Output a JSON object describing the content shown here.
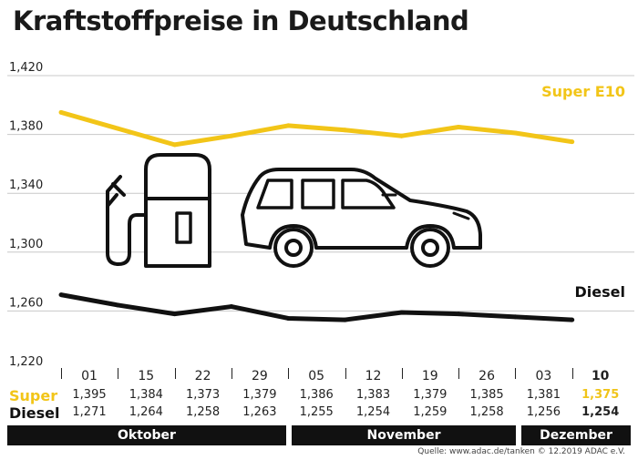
{
  "title": "Kraftstoffpreise in Deutschland",
  "source": "Quelle: www.adac.de/tanken   © 12.2019  ADAC e.V.",
  "colors": {
    "super": "#f2c518",
    "diesel": "#111111",
    "grid": "#c8c8c8"
  },
  "icons": [
    "fuel-pump-icon",
    "car-icon"
  ],
  "table": {
    "super_label": "Super",
    "diesel_label": "Diesel",
    "months": [
      "Oktober",
      "November",
      "Dezember"
    ]
  },
  "chart_data": {
    "type": "line",
    "title": "Kraftstoffpreise in Deutschland",
    "categories": [
      "01",
      "15",
      "22",
      "29",
      "05",
      "12",
      "19",
      "26",
      "03",
      "10"
    ],
    "ylim": [
      1.22,
      1.42
    ],
    "yticks": [
      "1,420",
      "1,380",
      "1,340",
      "1,300",
      "1,260",
      "1,220"
    ],
    "grid": true,
    "series": [
      {
        "name": "Super E10",
        "row_label": "Super",
        "color": "#f2c518",
        "values": [
          1.395,
          1.384,
          1.373,
          1.379,
          1.386,
          1.383,
          1.379,
          1.385,
          1.381,
          1.375
        ],
        "labels": [
          "1,395",
          "1,384",
          "1,373",
          "1,379",
          "1,386",
          "1,383",
          "1,379",
          "1,385",
          "1,381",
          "1,375"
        ]
      },
      {
        "name": "Diesel",
        "row_label": "Diesel",
        "color": "#111111",
        "values": [
          1.271,
          1.264,
          1.258,
          1.263,
          1.255,
          1.254,
          1.259,
          1.258,
          1.256,
          1.254
        ],
        "labels": [
          "1,271",
          "1,264",
          "1,258",
          "1,263",
          "1,255",
          "1,254",
          "1,259",
          "1,258",
          "1,256",
          "1,254"
        ]
      }
    ]
  }
}
